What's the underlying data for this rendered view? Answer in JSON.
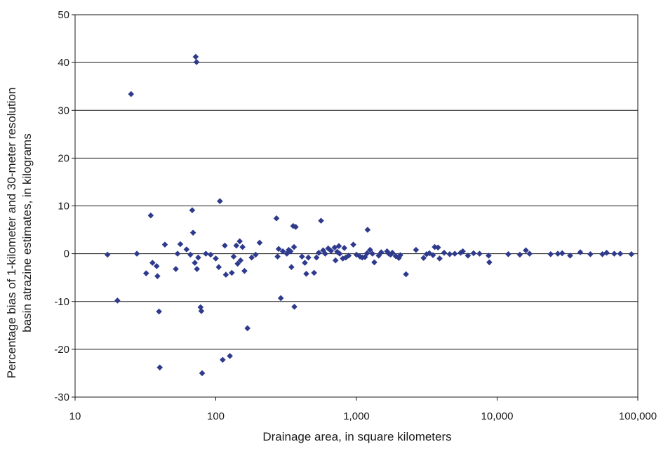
{
  "chart_data": {
    "type": "scatter",
    "xlabel": "Drainage area, in square kilometers",
    "ylabel_line1": "Percentage bias of 1-kilometer and 30-meter resolution",
    "ylabel_line2": "basin atrazine estimates, in kilograms",
    "x_scale": "log",
    "xlim": [
      10,
      100000
    ],
    "ylim": [
      -30,
      50
    ],
    "grid": "horizontal",
    "x_ticks": [
      {
        "value": 10,
        "label": "10"
      },
      {
        "value": 100,
        "label": "100"
      },
      {
        "value": 1000,
        "label": "1,000"
      },
      {
        "value": 10000,
        "label": "10,000"
      },
      {
        "value": 100000,
        "label": "100,000"
      }
    ],
    "y_ticks": [
      {
        "value": 50,
        "label": "50"
      },
      {
        "value": 40,
        "label": "40"
      },
      {
        "value": 30,
        "label": "30"
      },
      {
        "value": 20,
        "label": "20"
      },
      {
        "value": 10,
        "label": "10"
      },
      {
        "value": 0,
        "label": "0"
      },
      {
        "value": -10,
        "label": "-10"
      },
      {
        "value": -20,
        "label": "-20"
      },
      {
        "value": -30,
        "label": "-30"
      }
    ],
    "marker_color": "#2e3a8c",
    "points": [
      [
        17,
        -0.2
      ],
      [
        20,
        -9.8
      ],
      [
        25,
        33.4
      ],
      [
        27.5,
        0
      ],
      [
        32,
        -4.1
      ],
      [
        34.5,
        8.0
      ],
      [
        35.5,
        -1.9
      ],
      [
        38,
        -2.6
      ],
      [
        38.5,
        -4.7
      ],
      [
        39.5,
        -12.1
      ],
      [
        40,
        -23.8
      ],
      [
        43.5,
        1.9
      ],
      [
        52,
        -3.2
      ],
      [
        53.5,
        0
      ],
      [
        56,
        2.0
      ],
      [
        62,
        0.9
      ],
      [
        66,
        -0.2
      ],
      [
        68,
        9.1
      ],
      [
        69,
        4.4
      ],
      [
        71,
        -1.9
      ],
      [
        72,
        41.2
      ],
      [
        73,
        40.1
      ],
      [
        73.5,
        -3.2
      ],
      [
        75,
        -0.8
      ],
      [
        78,
        -11.2
      ],
      [
        79,
        -12.0
      ],
      [
        80,
        -25.0
      ],
      [
        85,
        0
      ],
      [
        92,
        -0.2
      ],
      [
        100,
        -1.0
      ],
      [
        105,
        -2.8
      ],
      [
        107,
        11.0
      ],
      [
        112,
        -22.2
      ],
      [
        116,
        1.7
      ],
      [
        118,
        -4.4
      ],
      [
        126,
        -21.4
      ],
      [
        130,
        -4.0
      ],
      [
        134,
        -0.6
      ],
      [
        140,
        1.7
      ],
      [
        143,
        -2.1
      ],
      [
        148,
        2.6
      ],
      [
        150,
        -1.4
      ],
      [
        155,
        1.4
      ],
      [
        160,
        -3.6
      ],
      [
        168,
        -15.6
      ],
      [
        180,
        -0.8
      ],
      [
        192,
        -0.2
      ],
      [
        205,
        2.3
      ],
      [
        270,
        7.4
      ],
      [
        275,
        -0.6
      ],
      [
        280,
        1.0
      ],
      [
        290,
        -9.3
      ],
      [
        300,
        0.5
      ],
      [
        320,
        0
      ],
      [
        330,
        0.8
      ],
      [
        340,
        0.5
      ],
      [
        345,
        -2.8
      ],
      [
        355,
        5.8
      ],
      [
        360,
        1.4
      ],
      [
        362,
        -11.1
      ],
      [
        370,
        5.6
      ],
      [
        410,
        -0.6
      ],
      [
        430,
        -1.9
      ],
      [
        440,
        -4.2
      ],
      [
        455,
        -0.8
      ],
      [
        500,
        -4.0
      ],
      [
        520,
        -0.8
      ],
      [
        540,
        0.2
      ],
      [
        560,
        6.9
      ],
      [
        580,
        0.7
      ],
      [
        600,
        0
      ],
      [
        630,
        1.1
      ],
      [
        660,
        0.6
      ],
      [
        700,
        1.3
      ],
      [
        710,
        -1.4
      ],
      [
        730,
        0.4
      ],
      [
        750,
        1.6
      ],
      [
        760,
        0
      ],
      [
        800,
        -1.0
      ],
      [
        820,
        1.2
      ],
      [
        840,
        -0.8
      ],
      [
        880,
        -0.4
      ],
      [
        950,
        1.9
      ],
      [
        1000,
        -0.2
      ],
      [
        1060,
        -0.6
      ],
      [
        1100,
        -0.8
      ],
      [
        1150,
        -0.7
      ],
      [
        1190,
        0.1
      ],
      [
        1200,
        5.0
      ],
      [
        1250,
        0.8
      ],
      [
        1300,
        0
      ],
      [
        1340,
        -1.8
      ],
      [
        1440,
        -0.4
      ],
      [
        1500,
        0.3
      ],
      [
        1650,
        0.5
      ],
      [
        1700,
        0
      ],
      [
        1750,
        -0.2
      ],
      [
        1800,
        0.2
      ],
      [
        1900,
        -0.5
      ],
      [
        2000,
        -0.9
      ],
      [
        2050,
        -0.3
      ],
      [
        2250,
        -4.3
      ],
      [
        2650,
        0.8
      ],
      [
        3000,
        -0.9
      ],
      [
        3150,
        -0.1
      ],
      [
        3300,
        0.1
      ],
      [
        3500,
        -0.3
      ],
      [
        3600,
        1.4
      ],
      [
        3800,
        1.3
      ],
      [
        3900,
        -1.0
      ],
      [
        4200,
        0.2
      ],
      [
        4600,
        -0.1
      ],
      [
        5000,
        0
      ],
      [
        5500,
        0.2
      ],
      [
        5700,
        0.5
      ],
      [
        6200,
        -0.4
      ],
      [
        6800,
        0.1
      ],
      [
        7500,
        0
      ],
      [
        8700,
        -0.4
      ],
      [
        8800,
        -1.8
      ],
      [
        12000,
        -0.1
      ],
      [
        14500,
        -0.2
      ],
      [
        16000,
        0.7
      ],
      [
        17000,
        0
      ],
      [
        24000,
        -0.1
      ],
      [
        27000,
        0
      ],
      [
        29000,
        0.1
      ],
      [
        33000,
        -0.4
      ],
      [
        39000,
        0.3
      ],
      [
        46000,
        -0.1
      ],
      [
        56000,
        -0.1
      ],
      [
        60000,
        0.2
      ],
      [
        68000,
        0
      ],
      [
        75000,
        0
      ],
      [
        90000,
        -0.1
      ]
    ]
  }
}
